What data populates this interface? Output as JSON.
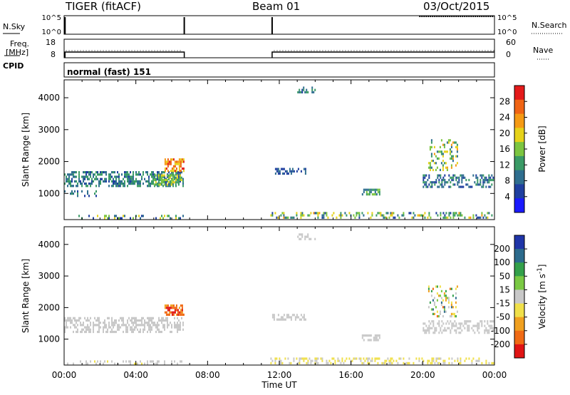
{
  "header": {
    "radar": "TIGER (fitACF)",
    "beam": "Beam 01",
    "date": "03/Oct/2015"
  },
  "strips": {
    "nsky": {
      "label": "N.Sky",
      "ticks": [
        "10^5",
        "10^0"
      ]
    },
    "nsearch": {
      "label": "N.Search",
      "ticks": [
        "10^5",
        "10^0"
      ]
    },
    "freq": {
      "label_line1": "Freq.",
      "label_line2": "[MHz]",
      "ticks": [
        "18",
        "8"
      ]
    },
    "nave": {
      "label": "Nave",
      "ticks": [
        "60",
        "0"
      ]
    },
    "cpid": {
      "label": "CPID",
      "value": "normal (fast) 151"
    }
  },
  "colors": {
    "power": [
      "#1a1aff",
      "#1f3fa0",
      "#2f6e8f",
      "#3a9a66",
      "#7cc540",
      "#e6d21a",
      "#f59a14",
      "#f06414",
      "#e41a1a"
    ],
    "velocity": [
      "#1f35a8",
      "#2c6b8d",
      "#33a04a",
      "#7ac943",
      "#c8c8c8",
      "#f0e04a",
      "#f0a020",
      "#f06a14",
      "#e01414"
    ]
  },
  "chart_data": [
    {
      "type": "heatmap",
      "name": "power",
      "ylabel": "Slant Range [km]",
      "ylim": [
        180,
        4560
      ],
      "yticks": [
        1000,
        2000,
        3000,
        4000
      ],
      "xlim": [
        0,
        24
      ],
      "colorbar": {
        "label": "Power [dB]",
        "range": [
          0,
          32
        ],
        "ticks": [
          4,
          8,
          12,
          16,
          20,
          24,
          28
        ]
      },
      "scatter_regions": [
        {
          "t0": 0.0,
          "t1": 6.7,
          "r0": 1200,
          "r1": 1700,
          "v0": 6,
          "v1": 14,
          "density": 0.55
        },
        {
          "t0": 0.0,
          "t1": 2.0,
          "r0": 900,
          "r1": 1100,
          "v0": 4,
          "v1": 12,
          "density": 0.3
        },
        {
          "t0": 5.0,
          "t1": 6.6,
          "r0": 1250,
          "r1": 1600,
          "v0": 12,
          "v1": 20,
          "density": 0.6
        },
        {
          "t0": 5.6,
          "t1": 6.7,
          "r0": 1650,
          "r1": 2100,
          "v0": 18,
          "v1": 30,
          "density": 0.6
        },
        {
          "t0": 11.6,
          "t1": 13.5,
          "r0": 1550,
          "r1": 1800,
          "v0": 4,
          "v1": 10,
          "density": 0.5
        },
        {
          "t0": 13.0,
          "t1": 14.0,
          "r0": 4100,
          "r1": 4350,
          "v0": 6,
          "v1": 14,
          "density": 0.45
        },
        {
          "t0": 16.6,
          "t1": 17.6,
          "r0": 950,
          "r1": 1150,
          "v0": 8,
          "v1": 16,
          "density": 0.55
        },
        {
          "t0": 20.0,
          "t1": 24.0,
          "r0": 1200,
          "r1": 1600,
          "v0": 4,
          "v1": 14,
          "density": 0.45
        },
        {
          "t0": 20.3,
          "t1": 22.0,
          "r0": 1700,
          "r1": 2700,
          "v0": 8,
          "v1": 22,
          "density": 0.25
        },
        {
          "t0": 11.5,
          "t1": 24.0,
          "r0": 190,
          "r1": 420,
          "v0": 4,
          "v1": 22,
          "density": 0.35
        },
        {
          "t0": 0.0,
          "t1": 6.7,
          "r0": 190,
          "r1": 330,
          "v0": 4,
          "v1": 20,
          "density": 0.2
        }
      ]
    },
    {
      "type": "heatmap",
      "name": "velocity",
      "ylabel": "Slant Range [km]",
      "ylim": [
        180,
        4560
      ],
      "yticks": [
        1000,
        2000,
        3000,
        4000
      ],
      "xlim": [
        0,
        24
      ],
      "xlabel": "Time UT",
      "xticks": [
        "00:00",
        "04:00",
        "08:00",
        "12:00",
        "16:00",
        "20:00",
        "00:00"
      ],
      "colorbar": {
        "label": "Velocity [m s-1]",
        "unit_main": "Velocity [m s",
        "unit_sup": "-1",
        "unit_close": "]",
        "range": [
          -300,
          300
        ],
        "ticks": [
          200,
          100,
          50,
          15,
          -15,
          -50,
          -100,
          -200
        ]
      },
      "scatter_regions": [
        {
          "t0": 0.0,
          "t1": 6.7,
          "r0": 1200,
          "r1": 1700,
          "v0": -10,
          "v1": 10,
          "density": 0.5
        },
        {
          "t0": 5.6,
          "t1": 6.7,
          "r0": 1750,
          "r1": 2100,
          "v0": -280,
          "v1": -150,
          "density": 0.6
        },
        {
          "t0": 11.6,
          "t1": 13.5,
          "r0": 1550,
          "r1": 1800,
          "v0": -10,
          "v1": 10,
          "density": 0.45
        },
        {
          "t0": 13.0,
          "t1": 14.0,
          "r0": 4100,
          "r1": 4350,
          "v0": -10,
          "v1": 10,
          "density": 0.4
        },
        {
          "t0": 16.6,
          "t1": 17.6,
          "r0": 950,
          "r1": 1150,
          "v0": -10,
          "v1": 10,
          "density": 0.5
        },
        {
          "t0": 20.0,
          "t1": 24.0,
          "r0": 1200,
          "r1": 1600,
          "v0": -10,
          "v1": 10,
          "density": 0.45
        },
        {
          "t0": 20.3,
          "t1": 22.0,
          "r0": 1700,
          "r1": 2700,
          "v0": -200,
          "v1": 200,
          "density": 0.25
        },
        {
          "t0": 11.5,
          "t1": 24.0,
          "r0": 190,
          "r1": 420,
          "v0": -60,
          "v1": -15,
          "density": 0.35
        },
        {
          "t0": 0.0,
          "t1": 6.7,
          "r0": 190,
          "r1": 330,
          "v0": -40,
          "v1": 20,
          "density": 0.2
        }
      ]
    }
  ]
}
